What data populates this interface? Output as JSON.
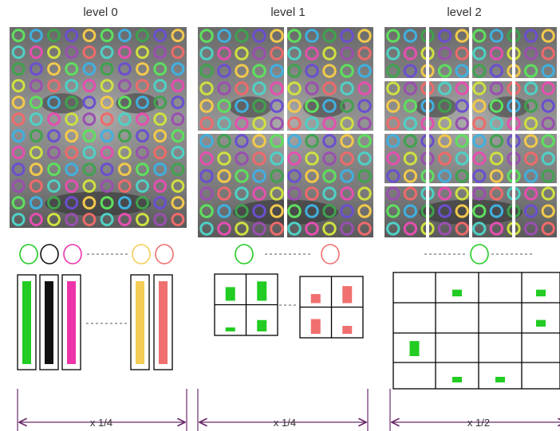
{
  "levels": [
    {
      "title": "level 0",
      "scale_label": "x 1/4",
      "codewords": [
        "#22cc22",
        "#111111",
        "#ee33aa",
        "#f5cc55",
        "#f07070"
      ],
      "histogram": {
        "type": "bars",
        "values": [
          1,
          1,
          1,
          1,
          1
        ],
        "colors": [
          "#22cc22",
          "#111111",
          "#ee33aa",
          "#f5cc55",
          "#f07070"
        ]
      }
    },
    {
      "title": "level 1",
      "scale_label": "x 1/4",
      "codewords": [
        "#22cc22",
        "#f07070"
      ],
      "histograms": [
        {
          "color": "#22cc22",
          "cells": [
            0.6,
            0.85,
            0.15,
            0.5
          ]
        },
        {
          "color": "#f07070",
          "cells": [
            0.4,
            0.75,
            0.65,
            0.35
          ]
        }
      ]
    },
    {
      "title": "level 2",
      "scale_label": "x 1/2",
      "codewords": [
        "#22cc22"
      ],
      "grid_cells": [
        {
          "row": 0,
          "col": 1,
          "value": 0.3
        },
        {
          "row": 0,
          "col": 3,
          "value": 0.3
        },
        {
          "row": 1,
          "col": 3,
          "value": 0.3
        },
        {
          "row": 2,
          "col": 0,
          "value": 0.7
        },
        {
          "row": 3,
          "col": 1,
          "value": 0.3
        },
        {
          "row": 3,
          "col": 2,
          "value": 0.3
        }
      ]
    }
  ],
  "colors": {
    "dim_line": "#6a2a6a",
    "dashes": "#555555",
    "grid_divider": "#ffffff"
  },
  "descriptor_palette": [
    "#5ee05e",
    "#e54fb0",
    "#f2c94c",
    "#4fd1c5",
    "#6b4fcf",
    "#ef6a6a",
    "#3fa34d",
    "#9a4fb0",
    "#40b0e0",
    "#d0e040"
  ]
}
